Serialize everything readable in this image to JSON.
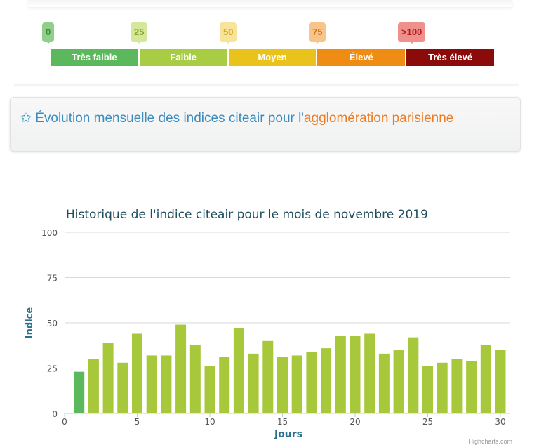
{
  "scale": {
    "ticks": [
      {
        "label": "0",
        "bg": "#8fcf8a",
        "fg": "#3d8a3a"
      },
      {
        "label": "25",
        "bg": "#d4e79a",
        "fg": "#8aa830"
      },
      {
        "label": "50",
        "bg": "#f7e39a",
        "fg": "#d4a820"
      },
      {
        "label": "75",
        "bg": "#f8c48a",
        "fg": "#c8781c"
      },
      {
        "label": ">100",
        "bg": "#f0908a",
        "fg": "#b02020"
      }
    ],
    "levels": [
      {
        "label": "Très faible",
        "color": "#5cb85c"
      },
      {
        "label": "Faible",
        "color": "#a8cc44"
      },
      {
        "label": "Moyen",
        "color": "#eac21c"
      },
      {
        "label": "Élevé",
        "color": "#ee8c14"
      },
      {
        "label": "Très élevé",
        "color": "#8b0a0a"
      }
    ]
  },
  "section": {
    "icon": "star-icon",
    "title_part1": "Évolution mensuelle des indices citeair pour l'",
    "title_part2": "agglomération parisienne"
  },
  "chart_data": {
    "type": "bar",
    "title": "Historique de l'indice citeair pour le mois de novembre 2019",
    "xlabel": "Jours",
    "ylabel": "Indice",
    "ylim": [
      0,
      100
    ],
    "xlim": [
      0,
      31
    ],
    "yticks": [
      0,
      25,
      50,
      75,
      100
    ],
    "xticks": [
      0,
      5,
      10,
      15,
      20,
      25,
      30
    ],
    "x": [
      1,
      2,
      3,
      4,
      5,
      6,
      7,
      8,
      9,
      10,
      11,
      12,
      13,
      14,
      15,
      16,
      17,
      18,
      19,
      20,
      21,
      22,
      23,
      24,
      25,
      26,
      27,
      28,
      29,
      30
    ],
    "values": [
      23,
      30,
      39,
      28,
      44,
      32,
      32,
      49,
      38,
      26,
      31,
      47,
      33,
      40,
      31,
      32,
      34,
      36,
      43,
      43,
      44,
      33,
      35,
      42,
      26,
      28,
      30,
      29,
      38,
      35
    ],
    "colors": {
      "very_low": "#5cb85c",
      "low": "#a8c83c"
    },
    "grid": true
  },
  "credit": "Highcharts.com"
}
